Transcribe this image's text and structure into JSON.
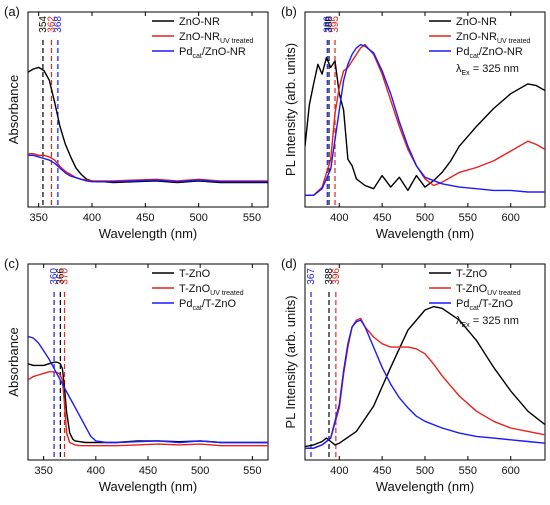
{
  "colors": {
    "black": "#000000",
    "red": "#e8211c",
    "blue": "#1a1aff"
  },
  "chart_data": [
    {
      "id": "a",
      "panel": "(a)",
      "type": "line",
      "xlabel": "Wavelength (nm)",
      "ylabel": "Absorbance",
      "xlim": [
        340,
        565
      ],
      "ylim": [
        0,
        1
      ],
      "yticks_shown": false,
      "xticks": [
        350,
        400,
        450,
        500,
        550
      ],
      "legend": "top-right",
      "series": [
        {
          "name": "ZnO-NR",
          "color": "black",
          "x": [
            340,
            345,
            350,
            355,
            360,
            365,
            370,
            375,
            380,
            385,
            390,
            395,
            400,
            405,
            410,
            420,
            440,
            460,
            480,
            500,
            520,
            540,
            560,
            565
          ],
          "y": [
            0.77,
            0.79,
            0.8,
            0.78,
            0.72,
            0.58,
            0.43,
            0.32,
            0.24,
            0.17,
            0.13,
            0.1,
            0.09,
            0.085,
            0.085,
            0.08,
            0.085,
            0.09,
            0.08,
            0.09,
            0.08,
            0.08,
            0.08,
            0.08
          ]
        },
        {
          "name": "ZnO-NR",
          "sub": "UV treated",
          "color": "red",
          "x": [
            340,
            345,
            350,
            355,
            360,
            365,
            370,
            375,
            380,
            385,
            390,
            395,
            400,
            405,
            410,
            420,
            440,
            460,
            480,
            500,
            520,
            540,
            560,
            565
          ],
          "y": [
            0.26,
            0.26,
            0.25,
            0.25,
            0.24,
            0.22,
            0.18,
            0.15,
            0.13,
            0.11,
            0.1,
            0.095,
            0.09,
            0.09,
            0.09,
            0.09,
            0.095,
            0.1,
            0.09,
            0.1,
            0.09,
            0.09,
            0.09,
            0.09
          ]
        },
        {
          "name": "Pd",
          "sub": "cat",
          "name_suffix": "/ZnO-NR",
          "color": "blue",
          "x": [
            340,
            345,
            350,
            355,
            360,
            365,
            370,
            375,
            380,
            385,
            390,
            395,
            400,
            405,
            410,
            420,
            440,
            460,
            480,
            500,
            520,
            540,
            560,
            565
          ],
          "y": [
            0.25,
            0.25,
            0.24,
            0.23,
            0.22,
            0.2,
            0.17,
            0.14,
            0.12,
            0.11,
            0.1,
            0.09,
            0.085,
            0.085,
            0.085,
            0.085,
            0.09,
            0.095,
            0.085,
            0.095,
            0.085,
            0.085,
            0.085,
            0.085
          ]
        }
      ],
      "markers": [
        {
          "x": 354,
          "label": "354",
          "color": "black"
        },
        {
          "x": 362,
          "label": "362",
          "color": "red"
        },
        {
          "x": 368,
          "label": "368",
          "color": "blue"
        }
      ]
    },
    {
      "id": "b",
      "panel": "(b)",
      "type": "line",
      "xlabel": "Wavelength (nm)",
      "ylabel": "PL Intensity (arb. units)",
      "xlim": [
        360,
        640
      ],
      "ylim": [
        0,
        1
      ],
      "yticks_shown": false,
      "xticks": [
        400,
        450,
        500,
        550,
        600
      ],
      "legend": "top-right",
      "annotation": {
        "text": "λ",
        "sub": "Ex",
        "suffix": " = 325 nm"
      },
      "series": [
        {
          "name": "ZnO-NR",
          "color": "black",
          "x": [
            360,
            365,
            370,
            375,
            380,
            385,
            390,
            395,
            400,
            405,
            410,
            415,
            420,
            430,
            440,
            450,
            460,
            470,
            480,
            490,
            500,
            510,
            520,
            530,
            540,
            560,
            580,
            600,
            620,
            630,
            640
          ],
          "y": [
            0.3,
            0.55,
            0.68,
            0.8,
            0.74,
            0.84,
            0.78,
            0.82,
            0.62,
            0.52,
            0.22,
            0.18,
            0.1,
            0.06,
            0.04,
            0.12,
            0.05,
            0.11,
            0.03,
            0.12,
            0.05,
            0.09,
            0.14,
            0.21,
            0.3,
            0.42,
            0.53,
            0.62,
            0.68,
            0.67,
            0.64
          ]
        },
        {
          "name": "ZnO-NR",
          "sub": "UV treated",
          "color": "red",
          "x": [
            360,
            370,
            380,
            390,
            395,
            400,
            405,
            410,
            415,
            420,
            425,
            430,
            440,
            450,
            460,
            470,
            480,
            490,
            500,
            510,
            520,
            540,
            560,
            580,
            600,
            620,
            630,
            640
          ],
          "y": [
            0.0,
            0.0,
            0.05,
            0.22,
            0.5,
            0.66,
            0.76,
            0.78,
            0.82,
            0.86,
            0.9,
            0.92,
            0.86,
            0.74,
            0.58,
            0.42,
            0.28,
            0.18,
            0.1,
            0.06,
            0.08,
            0.14,
            0.17,
            0.21,
            0.27,
            0.33,
            0.31,
            0.28
          ]
        },
        {
          "name": "Pd",
          "sub": "cat",
          "name_suffix": "/ZnO-NR",
          "color": "blue",
          "x": [
            360,
            370,
            380,
            390,
            400,
            405,
            410,
            415,
            420,
            425,
            430,
            440,
            450,
            460,
            470,
            480,
            490,
            500,
            520,
            540,
            560,
            580,
            600,
            620,
            640
          ],
          "y": [
            0.0,
            0.0,
            0.04,
            0.16,
            0.52,
            0.7,
            0.8,
            0.86,
            0.9,
            0.92,
            0.91,
            0.87,
            0.76,
            0.62,
            0.45,
            0.3,
            0.18,
            0.11,
            0.07,
            0.05,
            0.04,
            0.03,
            0.03,
            0.02,
            0.02
          ]
        }
      ],
      "markers": [
        {
          "x": 386,
          "label": "386",
          "color": "blue"
        },
        {
          "x": 388,
          "label": "388",
          "color": "black"
        },
        {
          "x": 395,
          "label": "395",
          "color": "red"
        }
      ]
    },
    {
      "id": "c",
      "panel": "(c)",
      "type": "line",
      "xlabel": "Wavelength (nm)",
      "ylabel": "Absorbance",
      "xlim": [
        335,
        565
      ],
      "ylim": [
        0,
        1
      ],
      "yticks_shown": false,
      "xticks": [
        350,
        400,
        450,
        500,
        550
      ],
      "legend": "top-right",
      "series": [
        {
          "name": "T-ZnO",
          "color": "black",
          "x": [
            335,
            340,
            345,
            350,
            355,
            360,
            363,
            366,
            368,
            370,
            372,
            375,
            378,
            380,
            385,
            390,
            400,
            420,
            440,
            460,
            480,
            500,
            520,
            540,
            560,
            565
          ],
          "y": [
            0.55,
            0.54,
            0.54,
            0.54,
            0.55,
            0.56,
            0.56,
            0.55,
            0.52,
            0.4,
            0.25,
            0.12,
            0.08,
            0.07,
            0.065,
            0.06,
            0.06,
            0.06,
            0.07,
            0.07,
            0.065,
            0.07,
            0.06,
            0.06,
            0.06,
            0.06
          ]
        },
        {
          "name": "T-ZnO",
          "sub": "UV treated",
          "color": "red",
          "x": [
            335,
            340,
            345,
            350,
            355,
            360,
            365,
            368,
            370,
            372,
            375,
            380,
            385,
            390,
            400,
            420,
            440,
            460,
            480,
            500,
            520,
            540,
            560,
            565
          ],
          "y": [
            0.45,
            0.47,
            0.48,
            0.49,
            0.5,
            0.5,
            0.49,
            0.45,
            0.3,
            0.12,
            0.06,
            0.045,
            0.04,
            0.04,
            0.04,
            0.04,
            0.045,
            0.05,
            0.045,
            0.05,
            0.04,
            0.04,
            0.04,
            0.04
          ]
        },
        {
          "name": "Pd",
          "sub": "cat",
          "name_suffix": "/T-ZnO",
          "color": "blue",
          "x": [
            335,
            340,
            345,
            350,
            355,
            360,
            365,
            370,
            375,
            380,
            385,
            390,
            395,
            400,
            410,
            420,
            440,
            460,
            480,
            500,
            520,
            540,
            560,
            565
          ],
          "y": [
            0.72,
            0.71,
            0.68,
            0.63,
            0.58,
            0.52,
            0.46,
            0.4,
            0.34,
            0.28,
            0.22,
            0.16,
            0.1,
            0.07,
            0.06,
            0.06,
            0.065,
            0.07,
            0.06,
            0.07,
            0.06,
            0.06,
            0.06,
            0.06
          ]
        }
      ],
      "markers": [
        {
          "x": 360,
          "label": "360",
          "color": "blue"
        },
        {
          "x": 366,
          "label": "366",
          "color": "black"
        },
        {
          "x": 370,
          "label": "370",
          "color": "red"
        }
      ]
    },
    {
      "id": "d",
      "panel": "(d)",
      "type": "line",
      "xlabel": "Wavelength (nm)",
      "ylabel": "PL Intensity (arb. units)",
      "xlim": [
        360,
        640
      ],
      "ylim": [
        0,
        1
      ],
      "yticks_shown": false,
      "xticks": [
        400,
        450,
        500,
        550,
        600
      ],
      "legend": "top-right",
      "annotation": {
        "text": "λ",
        "sub": "Ex",
        "suffix": " = 325 nm"
      },
      "series": [
        {
          "name": "T-ZnO",
          "color": "black",
          "x": [
            360,
            370,
            380,
            385,
            390,
            395,
            400,
            420,
            440,
            460,
            480,
            500,
            510,
            520,
            540,
            560,
            580,
            600,
            620,
            640
          ],
          "y": [
            0.01,
            0.02,
            0.04,
            0.06,
            0.04,
            0.02,
            0.03,
            0.1,
            0.25,
            0.48,
            0.7,
            0.82,
            0.84,
            0.83,
            0.76,
            0.64,
            0.48,
            0.34,
            0.22,
            0.14
          ]
        },
        {
          "name": "T-ZnO",
          "sub": "UV treated",
          "color": "red",
          "x": [
            360,
            370,
            380,
            390,
            400,
            405,
            410,
            415,
            420,
            425,
            430,
            440,
            450,
            460,
            470,
            480,
            490,
            500,
            510,
            520,
            530,
            540,
            560,
            580,
            600,
            620,
            640
          ],
          "y": [
            0.0,
            0.0,
            0.02,
            0.06,
            0.24,
            0.44,
            0.6,
            0.72,
            0.76,
            0.77,
            0.72,
            0.66,
            0.62,
            0.6,
            0.6,
            0.6,
            0.59,
            0.56,
            0.5,
            0.43,
            0.37,
            0.31,
            0.22,
            0.16,
            0.12,
            0.1,
            0.08
          ]
        },
        {
          "name": "Pd",
          "sub": "cat",
          "name_suffix": "/T-ZnO",
          "color": "blue",
          "x": [
            360,
            370,
            380,
            390,
            400,
            405,
            410,
            415,
            420,
            425,
            430,
            440,
            450,
            460,
            470,
            480,
            490,
            500,
            520,
            540,
            560,
            580,
            600,
            620,
            640
          ],
          "y": [
            0.0,
            0.0,
            0.02,
            0.06,
            0.26,
            0.46,
            0.62,
            0.72,
            0.75,
            0.76,
            0.72,
            0.6,
            0.48,
            0.38,
            0.3,
            0.24,
            0.19,
            0.16,
            0.12,
            0.09,
            0.07,
            0.06,
            0.05,
            0.04,
            0.03
          ]
        }
      ],
      "markers": [
        {
          "x": 367,
          "label": "367",
          "color": "blue"
        },
        {
          "x": 388,
          "label": "388",
          "color": "black"
        },
        {
          "x": 396,
          "label": "396",
          "color": "red"
        }
      ]
    }
  ]
}
